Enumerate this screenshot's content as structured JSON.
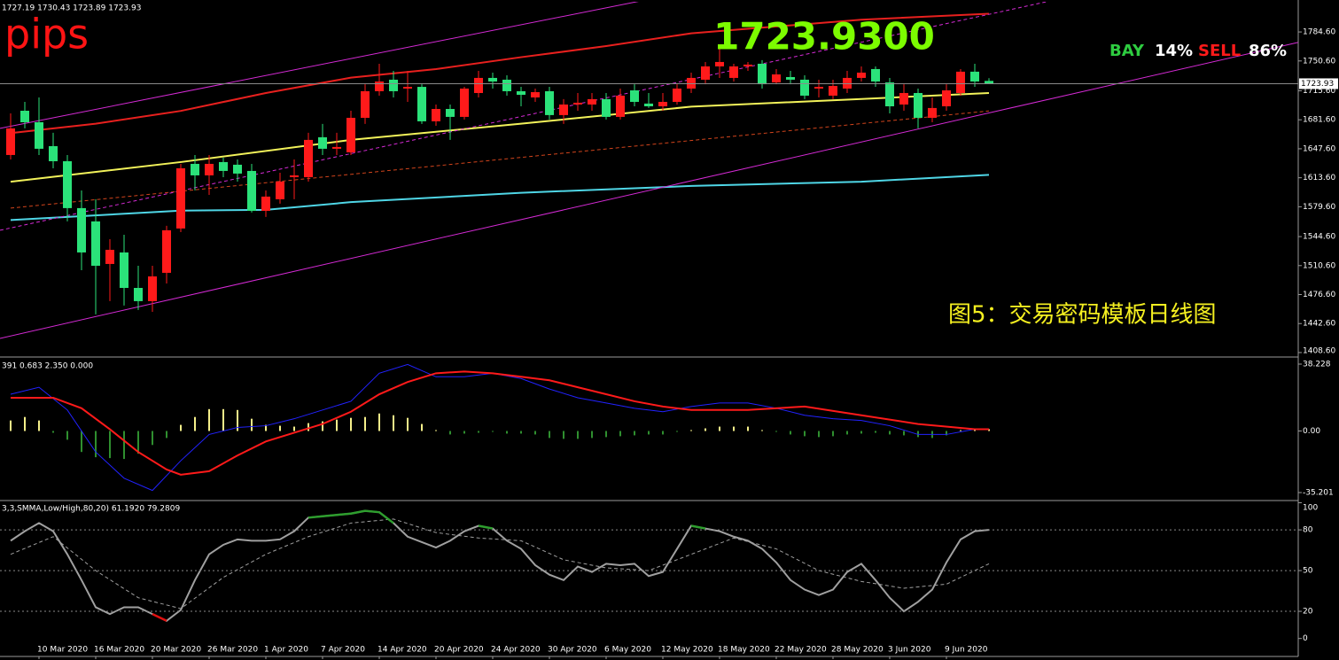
{
  "chart_data": [
    {
      "type": "candlestick",
      "title": "pips",
      "ohlc_label": "1727.19 1730.43 1723.89 1723.93",
      "price": "1723.9300",
      "signal": {
        "buy_label": "BAY",
        "buy": "14%",
        "sell_label": "SELL",
        "sell": "86%"
      },
      "annotation": "图5：交易密码模板日线图",
      "up_color": "#ff1a1a",
      "down_color": "#2be27a",
      "categories": [
        null,
        null,
        "10 Mar 2020",
        null,
        null,
        null,
        "16 Mar 2020",
        null,
        null,
        null,
        "20 Mar 2020",
        null,
        null,
        null,
        "26 Mar 2020",
        null,
        null,
        null,
        "1 Apr 2020",
        null,
        null,
        null,
        "7 Apr 2020",
        null,
        null,
        null,
        "14 Apr 2020",
        null,
        null,
        null,
        "20 Apr 2020",
        null,
        null,
        null,
        "24 Apr 2020",
        null,
        null,
        null,
        "30 Apr 2020",
        null,
        null,
        null,
        "6 May 2020",
        null,
        null,
        null,
        "12 May 2020",
        null,
        null,
        null,
        "18 May 2020",
        null,
        null,
        null,
        "22 May 2020",
        null,
        null,
        null,
        "28 May 2020",
        null,
        null,
        null,
        "3 Jun 2020",
        null,
        null,
        null,
        "9 Jun 2020",
        null,
        null,
        null
      ],
      "open": [
        1640.3,
        1692.2,
        1678.7,
        1650.7,
        1633,
        1578,
        1562.4,
        1512.5,
        1526,
        1484.4,
        1468.9,
        1502.1,
        1554.1,
        1629.9,
        1616.4,
        1632,
        1628.9,
        1621.6,
        1574.8,
        1588.4,
        1614.3,
        1614.3,
        1661.1,
        1647.6,
        1643.4,
        1683.9,
        1715.1,
        1728.6,
        1718.2,
        1720.2,
        1679.8,
        1694.3,
        1685,
        1713,
        1730.7,
        1728.6,
        1715.1,
        1707.8,
        1715.1,
        1687.1,
        1699.5,
        1699.5,
        1705.8,
        1685,
        1716.1,
        1700.6,
        1697.4,
        1702.6,
        1718.2,
        1728.6,
        1744.2,
        1730.7,
        1744.2,
        1747.3,
        1725.4,
        1731.7,
        1728.6,
        1718.2,
        1709.9,
        1718.2,
        1730.7,
        1741.1,
        1725.4,
        1699.5,
        1713,
        1683.9,
        1697.4,
        1713,
        1738,
        1727.19
      ],
      "high": [
        1689.1,
        1702.6,
        1707.8,
        1666.3,
        1640.3,
        1598.7,
        1588.4,
        1541.6,
        1546.8,
        1510.4,
        1510.4,
        1557.2,
        1629.9,
        1640.3,
        1640.3,
        1637.2,
        1635.1,
        1629.9,
        1598.7,
        1619.5,
        1635.1,
        1666.3,
        1676.7,
        1666.3,
        1692.2,
        1723.3,
        1747.3,
        1739,
        1739,
        1723.3,
        1699.5,
        1699.5,
        1720.2,
        1739,
        1736.9,
        1733.8,
        1720.2,
        1718.2,
        1720.2,
        1705.8,
        1713,
        1713,
        1713,
        1718.2,
        1723.3,
        1713,
        1713,
        1723.3,
        1736.9,
        1749.4,
        1768,
        1747.3,
        1749.4,
        1751.5,
        1741.1,
        1739,
        1733.8,
        1728.6,
        1728.6,
        1739,
        1744.2,
        1744.2,
        1730.7,
        1723.3,
        1718.2,
        1707.8,
        1723.3,
        1741.1,
        1747.3,
        1730.43
      ],
      "low": [
        1635.1,
        1671.5,
        1640.3,
        1624.7,
        1562.4,
        1505.2,
        1453.3,
        1468.9,
        1463.7,
        1458.5,
        1456.4,
        1489.6,
        1549.9,
        1598.7,
        1593.5,
        1614.3,
        1609.1,
        1572.8,
        1567.6,
        1583.2,
        1588.4,
        1609.1,
        1640.3,
        1640.3,
        1640.3,
        1676.7,
        1709.9,
        1707.8,
        1702.6,
        1676.7,
        1674.6,
        1658,
        1681.9,
        1707.8,
        1718.2,
        1709.9,
        1697.4,
        1702.6,
        1681.9,
        1676.7,
        1692.2,
        1692.2,
        1681.9,
        1681.9,
        1697.4,
        1695.4,
        1692.2,
        1699.5,
        1713,
        1723.3,
        1730.7,
        1726.5,
        1739,
        1718.2,
        1723.3,
        1723.3,
        1705.8,
        1707.8,
        1705.8,
        1713,
        1726.5,
        1720.2,
        1689.1,
        1692.2,
        1671.5,
        1678.7,
        1692.2,
        1709.9,
        1720.2,
        1723.89
      ],
      "close": [
        1671.5,
        1678.7,
        1647.6,
        1633,
        1578,
        1526,
        1510.4,
        1529.1,
        1484.4,
        1468.9,
        1497.9,
        1552,
        1624.7,
        1616.4,
        1629.9,
        1621.6,
        1618.5,
        1574.8,
        1591.5,
        1609.1,
        1616.4,
        1658,
        1647.6,
        1649.7,
        1683.9,
        1715.1,
        1726.5,
        1715.1,
        1720.2,
        1679.8,
        1694.3,
        1685,
        1718.2,
        1730.7,
        1726.5,
        1715.1,
        1710.9,
        1714,
        1687.1,
        1699.5,
        1701.6,
        1705.8,
        1685,
        1709.9,
        1702.6,
        1697.4,
        1702.6,
        1718.2,
        1730.7,
        1744.2,
        1749.4,
        1744.2,
        1746.3,
        1723.3,
        1734.8,
        1728.6,
        1709.9,
        1720.2,
        1721.3,
        1730.7,
        1736.9,
        1726.5,
        1697.4,
        1713,
        1683.9,
        1695.4,
        1716.1,
        1738,
        1726.5,
        1723.93
      ],
      "current_price": {
        "value": 1723.93,
        "label": "1723.93"
      },
      "lines": [
        {
          "color": "#e8201e",
          "width": 2,
          "x": [
            0,
            6,
            12,
            18,
            24,
            30,
            36,
            42,
            48,
            54,
            60,
            69
          ],
          "values": [
            1666,
            1677,
            1692,
            1713,
            1731,
            1741,
            1755,
            1768,
            1783,
            1791,
            1799,
            1806
          ]
        },
        {
          "color": "#f2f25a",
          "width": 2,
          "x": [
            0,
            12,
            24,
            36,
            48,
            60,
            69
          ],
          "values": [
            1609,
            1632,
            1658,
            1677,
            1697,
            1706,
            1713
          ]
        },
        {
          "color": "#4fd6e6",
          "width": 2,
          "x": [
            0,
            12,
            18,
            24,
            36,
            48,
            60,
            69
          ],
          "values": [
            1564,
            1575,
            1576,
            1585,
            1596,
            1604,
            1609,
            1617
          ]
        },
        {
          "color": "#d2441c",
          "width": 1,
          "dash": true,
          "x": [
            0,
            69
          ],
          "values": [
            1578,
            1692
          ]
        },
        {
          "color": "#d42ad4",
          "width": 1,
          "x": [
            -0.75,
            44.75
          ],
          "values": [
            1671.5,
            1822
          ]
        },
        {
          "color": "#d42ad4",
          "width": 1,
          "x": [
            -0.75,
            90.8
          ],
          "values": [
            1425.2,
            1772.3
          ]
        },
        {
          "color": "#d42ad4",
          "width": 1,
          "dash": true,
          "x": [
            -0.75,
            73.6
          ],
          "values": [
            1552,
            1822
          ]
        }
      ],
      "ylim": [
        1404.4,
        1820
      ],
      "yticks": [
        {
          "value": 1408.6,
          "label": "1408.60"
        },
        {
          "value": 1442.6,
          "label": "1442.60"
        },
        {
          "value": 1476.6,
          "label": "1476.60"
        },
        {
          "value": 1510.6,
          "label": "1510.60"
        },
        {
          "value": 1544.6,
          "label": "1544.60"
        },
        {
          "value": 1579.6,
          "label": "1579.60"
        },
        {
          "value": 1613.6,
          "label": "1613.60"
        },
        {
          "value": 1647.6,
          "label": "1647.60"
        },
        {
          "value": 1681.6,
          "label": "1681.60"
        },
        {
          "value": 1715.6,
          "label": "1715.60"
        },
        {
          "value": 1750.6,
          "label": "1750.60"
        },
        {
          "value": 1784.6,
          "label": "1784.60"
        }
      ]
    },
    {
      "type": "macd",
      "label": "391 0.683 2.350 0.000",
      "up_color": "#f5ef8a",
      "down_color": "#2f8f2f",
      "histogram": [
        6,
        8,
        6,
        -1,
        -5,
        -12,
        -15,
        -15.5,
        -16,
        -13,
        -8,
        -4,
        3.5,
        8,
        12.5,
        12.5,
        12,
        7,
        3.5,
        3,
        2.5,
        4.5,
        5.5,
        6.5,
        7.5,
        8,
        10,
        9,
        7.5,
        4,
        0.5,
        -2,
        -1.5,
        -1,
        -0.5,
        -1.5,
        -1.5,
        -2,
        -4,
        -4.5,
        -4.5,
        -4,
        -3.5,
        -3,
        -2.5,
        -2,
        -2,
        -0.5,
        0.5,
        1.5,
        2.5,
        2.5,
        2.5,
        0.5,
        -0.5,
        -2,
        -3,
        -3.5,
        -3,
        -2,
        -1.5,
        -1,
        -2,
        -2.5,
        -3.5,
        -4,
        -2.5,
        0.5,
        1,
        1
      ],
      "lines": [
        {
          "color": "#2222ff",
          "width": 1,
          "x": [
            0,
            2,
            4,
            6,
            8,
            10,
            12,
            14,
            16,
            18,
            20,
            22,
            24,
            26,
            28,
            30,
            32,
            34,
            36,
            38,
            40,
            42,
            44,
            46,
            48,
            50,
            52,
            54,
            56,
            58,
            60,
            62,
            64,
            66,
            68,
            69
          ],
          "values": [
            21,
            25,
            12,
            -12,
            -27,
            -34,
            -17,
            -2,
            2,
            3,
            7,
            12,
            17,
            33,
            38,
            31,
            31,
            33,
            30,
            24,
            19,
            16,
            13,
            11,
            14,
            16,
            16,
            13,
            9,
            7,
            6,
            3,
            -2,
            -2,
            1,
            1
          ]
        },
        {
          "color": "#ff1a1a",
          "width": 2,
          "x": [
            0,
            3,
            5,
            7,
            9,
            11,
            12,
            14,
            16,
            18,
            20,
            22,
            24,
            26,
            28,
            30,
            32,
            34,
            36,
            38,
            40,
            42,
            44,
            46,
            48,
            52,
            56,
            60,
            64,
            68,
            69
          ],
          "values": [
            19,
            19,
            13,
            1,
            -12,
            -22,
            -25,
            -23,
            -14,
            -6,
            -1,
            4,
            11,
            21,
            28,
            33,
            34,
            33,
            31,
            29,
            25,
            21,
            17,
            14,
            12,
            12,
            14,
            9,
            4,
            1,
            1
          ]
        }
      ],
      "ylim": [
        -38.75,
        41.27
      ],
      "yticks": [
        -35.201,
        {
          "value": 0,
          "label": "0.00"
        },
        38.228
      ]
    },
    {
      "type": "stochastic",
      "label": "3,3,SMMA,Low/High,80,20) 61.1920 79.2809",
      "color": "#a0a0a0",
      "high_color": "#2e9e2e",
      "low_color": "#e01010",
      "signal_color": "#a0a0a0",
      "values": [
        72,
        79,
        85,
        79,
        62,
        43,
        23,
        18,
        23,
        23,
        18,
        13,
        21,
        43,
        62,
        69,
        73,
        72,
        72,
        73,
        79,
        89,
        90,
        91,
        92,
        94,
        93,
        85,
        75,
        71,
        67,
        72,
        79,
        83,
        81,
        72,
        66,
        54,
        47,
        43,
        53,
        49,
        55,
        54,
        55,
        46,
        49,
        66,
        83,
        81,
        79,
        75,
        72,
        66,
        56,
        43,
        36,
        32,
        36,
        49,
        55,
        43,
        30,
        20,
        27,
        36,
        56,
        73,
        79,
        80
      ],
      "signal": {
        "x": [
          0,
          3,
          6,
          9,
          12,
          15,
          18,
          21,
          24,
          27,
          30,
          33,
          36,
          39,
          42,
          45,
          48,
          51,
          54,
          57,
          60,
          63,
          66,
          69
        ],
        "values": [
          62,
          75,
          50,
          30,
          22,
          45,
          62,
          75,
          85,
          88,
          78,
          74,
          72,
          58,
          52,
          50,
          62,
          74,
          66,
          50,
          42,
          37,
          40,
          55
        ]
      },
      "ylim": [
        -12.6,
        100.3
      ],
      "yticks": [
        0,
        20,
        50,
        80,
        100
      ]
    }
  ]
}
